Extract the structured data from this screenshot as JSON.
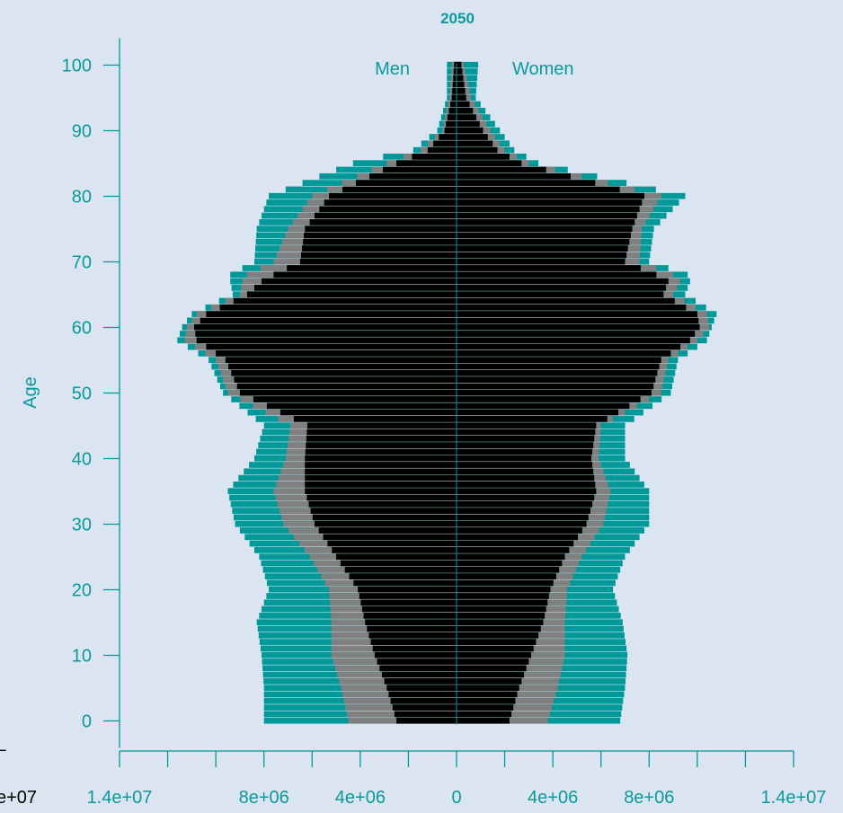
{
  "chart_data": {
    "type": "bar",
    "subtype": "population-pyramid",
    "title": "2050",
    "xlabel": "",
    "ylabel": "Age",
    "left_label": "Men",
    "right_label": "Women",
    "xlim": [
      -14000000,
      14000000
    ],
    "ylim": [
      0,
      100
    ],
    "x_ticks": [
      -14000000,
      -12000000,
      -10000000,
      -8000000,
      -6000000,
      -4000000,
      -2000000,
      0,
      2000000,
      4000000,
      6000000,
      8000000,
      10000000,
      12000000,
      14000000
    ],
    "x_tick_labels": [
      "1.4e+07",
      "",
      "",
      "8e+06",
      "",
      "4e+06",
      "",
      "0",
      "",
      "4e+06",
      "",
      "8e+06",
      "",
      "",
      "1.4e+07"
    ],
    "y_ticks": [
      0,
      10,
      20,
      30,
      40,
      50,
      60,
      70,
      80,
      90,
      100
    ],
    "y_tick_labels": [
      "0",
      "10",
      "20",
      "30",
      "40",
      "50",
      "60",
      "70",
      "80",
      "90",
      "100"
    ],
    "edge_fragments": {
      "left_label": "e+07",
      "left_mark": "⌐"
    },
    "colors": {
      "outer": "#009999",
      "middle": "#808080",
      "inner": "#000000",
      "axis": "#009999",
      "background": "#dbe5f1"
    },
    "series_order": [
      "outer",
      "middle",
      "inner"
    ],
    "men": {
      "ages": [
        0,
        5,
        10,
        15,
        20,
        25,
        30,
        35,
        40,
        45,
        50,
        55,
        58,
        60,
        62,
        65,
        67,
        68,
        70,
        75,
        80,
        85,
        87,
        90,
        95,
        100
      ],
      "outer": [
        8000000,
        8000000,
        8100000,
        8300000,
        7800000,
        8200000,
        9200000,
        9500000,
        8400000,
        8000000,
        9700000,
        10300000,
        11600000,
        11400000,
        11000000,
        9300000,
        9400000,
        9400000,
        8400000,
        8300000,
        7800000,
        4300000,
        1800000,
        800000,
        400000,
        400000
      ],
      "middle": [
        4500000,
        4800000,
        5200000,
        5200000,
        5300000,
        6100000,
        7200000,
        7600000,
        7100000,
        6900000,
        9500000,
        10000000,
        11300000,
        11200000,
        10800000,
        9000000,
        8900000,
        8700000,
        7600000,
        7000000,
        6000000,
        2900000,
        1500000,
        600000,
        300000,
        200000
      ],
      "inner": [
        2500000,
        2900000,
        3400000,
        3800000,
        4100000,
        5000000,
        5900000,
        6300000,
        6300000,
        6200000,
        9000000,
        9600000,
        10800000,
        10900000,
        10400000,
        8700000,
        8100000,
        7600000,
        6500000,
        6300000,
        5300000,
        2500000,
        1200000,
        500000,
        200000,
        100000
      ]
    },
    "women": {
      "ages": [
        0,
        5,
        10,
        15,
        20,
        25,
        30,
        35,
        40,
        45,
        50,
        55,
        58,
        60,
        62,
        65,
        67,
        68,
        70,
        75,
        80,
        85,
        87,
        90,
        95,
        100
      ],
      "outer": [
        6800000,
        7000000,
        7100000,
        6900000,
        6500000,
        7000000,
        8000000,
        8000000,
        7000000,
        7000000,
        8900000,
        9200000,
        10400000,
        10600000,
        10800000,
        9500000,
        9700000,
        9600000,
        8000000,
        8200000,
        9500000,
        3400000,
        2400000,
        1800000,
        800000,
        900000
      ],
      "middle": [
        3800000,
        4200000,
        4500000,
        4500000,
        4600000,
        5200000,
        6100000,
        6400000,
        5900000,
        6000000,
        8500000,
        8800000,
        10000000,
        10500000,
        10400000,
        9000000,
        9300000,
        9000000,
        7600000,
        7700000,
        8500000,
        3000000,
        2000000,
        1400000,
        600000,
        300000
      ],
      "inner": [
        2200000,
        2600000,
        3100000,
        3600000,
        3900000,
        4500000,
        5400000,
        5800000,
        5600000,
        5800000,
        8100000,
        8500000,
        9700000,
        10100000,
        10000000,
        8600000,
        8800000,
        8300000,
        7000000,
        7300000,
        7800000,
        2700000,
        1700000,
        1100000,
        400000,
        200000
      ]
    }
  }
}
